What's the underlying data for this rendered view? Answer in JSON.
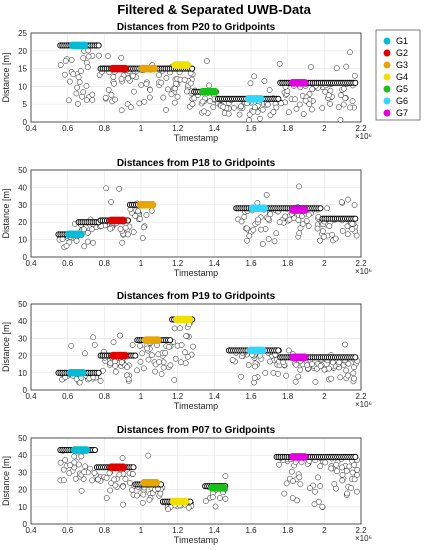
{
  "figure_title": "Filtered & Separated UWB-Data",
  "colors": {
    "G1": "#00bcd4",
    "G2": "#e00000",
    "G3": "#e8a400",
    "G4": "#f0e000",
    "G5": "#18c018",
    "G6": "#30d8ff",
    "G7": "#e000e0"
  },
  "legend": [
    "G1",
    "G2",
    "G3",
    "G4",
    "G5",
    "G6",
    "G7"
  ],
  "chart_data": [
    {
      "type": "scatter",
      "title": "Distances from P20 to Gridpoints",
      "xlabel": "Timestamp",
      "ylabel": "Distance [m]",
      "x_multiplier": "×10⁶",
      "xlim": [
        0.4,
        2.2
      ],
      "ylim": [
        0,
        25
      ],
      "xticks": [
        "0.4",
        "0.6",
        "0.8",
        "1",
        "1.2",
        "1.4",
        "1.6",
        "1.8",
        "2",
        "2.2"
      ],
      "yticks": [
        "0",
        "5",
        "10",
        "15",
        "20",
        "25"
      ],
      "grid": true,
      "steps": [
        {
          "x0": 0.56,
          "x1": 0.78,
          "y": 21.5
        },
        {
          "x0": 0.78,
          "x1": 1.29,
          "y": 15
        },
        {
          "x0": 1.29,
          "x1": 1.42,
          "y": 8.5
        },
        {
          "x0": 1.42,
          "x1": 1.76,
          "y": 6.5
        },
        {
          "x0": 1.76,
          "x1": 2.18,
          "y": 11
        }
      ],
      "scatter_y_range": [
        0,
        23
      ],
      "gridpoints": [
        {
          "name": "G1",
          "x": 0.66,
          "y": 21.5
        },
        {
          "name": "G2",
          "x": 0.88,
          "y": 15
        },
        {
          "name": "G3",
          "x": 1.04,
          "y": 15
        },
        {
          "name": "G4",
          "x": 1.22,
          "y": 16
        },
        {
          "name": "G5",
          "x": 1.37,
          "y": 8.5
        },
        {
          "name": "G6",
          "x": 1.62,
          "y": 6.5
        },
        {
          "name": "G7",
          "x": 1.86,
          "y": 11
        }
      ]
    },
    {
      "type": "scatter",
      "title": "Distances from P18 to Gridpoints",
      "xlabel": "Timestamp",
      "ylabel": "Distance [m]",
      "x_multiplier": "×10⁶",
      "xlim": [
        0.4,
        2.2
      ],
      "ylim": [
        0,
        50
      ],
      "xticks": [
        "0.4",
        "0.6",
        "0.8",
        "1",
        "1.2",
        "1.4",
        "1.6",
        "1.8",
        "2",
        "2.2"
      ],
      "yticks": [
        "0",
        "10",
        "20",
        "30",
        "40",
        "50"
      ],
      "grid": true,
      "steps": [
        {
          "x0": 0.55,
          "x1": 0.66,
          "y": 13
        },
        {
          "x0": 0.66,
          "x1": 0.78,
          "y": 20
        },
        {
          "x0": 0.78,
          "x1": 0.94,
          "y": 21
        },
        {
          "x0": 0.94,
          "x1": 1.06,
          "y": 30
        },
        {
          "x0": 1.52,
          "x1": 1.99,
          "y": 28
        },
        {
          "x0": 1.99,
          "x1": 2.18,
          "y": 22
        }
      ],
      "scatter_y_range": [
        5,
        45
      ],
      "gridpoints": [
        {
          "name": "G1",
          "x": 0.64,
          "y": 13
        },
        {
          "name": "G2",
          "x": 0.87,
          "y": 21
        },
        {
          "name": "G3",
          "x": 1.03,
          "y": 30
        },
        {
          "name": "G6",
          "x": 1.64,
          "y": 28
        },
        {
          "name": "G7",
          "x": 1.86,
          "y": 27
        }
      ]
    },
    {
      "type": "scatter",
      "title": "Distances from P19 to Gridpoints",
      "xlabel": "Timestamp",
      "ylabel": "Distance [m]",
      "x_multiplier": "×10⁶",
      "xlim": [
        0.4,
        2.2
      ],
      "ylim": [
        0,
        50
      ],
      "xticks": [
        "0.4",
        "0.6",
        "0.8",
        "1",
        "1.2",
        "1.4",
        "1.6",
        "1.8",
        "2",
        "2.2"
      ],
      "yticks": [
        "0",
        "10",
        "20",
        "30",
        "40",
        "50"
      ],
      "grid": true,
      "steps": [
        {
          "x0": 0.55,
          "x1": 0.78,
          "y": 10
        },
        {
          "x0": 0.78,
          "x1": 0.98,
          "y": 20
        },
        {
          "x0": 0.98,
          "x1": 1.17,
          "y": 29
        },
        {
          "x0": 1.17,
          "x1": 1.29,
          "y": 41
        },
        {
          "x0": 1.48,
          "x1": 1.76,
          "y": 23
        },
        {
          "x0": 1.76,
          "x1": 2.18,
          "y": 19
        }
      ],
      "scatter_y_range": [
        3,
        35
      ],
      "gridpoints": [
        {
          "name": "G1",
          "x": 0.65,
          "y": 10
        },
        {
          "name": "G2",
          "x": 0.88,
          "y": 20
        },
        {
          "name": "G3",
          "x": 1.06,
          "y": 29
        },
        {
          "name": "G4",
          "x": 1.23,
          "y": 41
        },
        {
          "name": "G6",
          "x": 1.63,
          "y": 23
        },
        {
          "name": "G7",
          "x": 1.86,
          "y": 19
        }
      ]
    },
    {
      "type": "scatter",
      "title": "Distances from P07 to Gridpoints",
      "xlabel": "Timestamp",
      "ylabel": "Distance [m]",
      "x_multiplier": "×10⁶",
      "xlim": [
        0.4,
        2.2
      ],
      "ylim": [
        0,
        50
      ],
      "xticks": [
        "0.4",
        "0.6",
        "0.8",
        "1",
        "1.2",
        "1.4",
        "1.6",
        "1.8",
        "2",
        "2.2"
      ],
      "yticks": [
        "0",
        "10",
        "20",
        "30",
        "40",
        "50"
      ],
      "grid": true,
      "steps": [
        {
          "x0": 0.56,
          "x1": 0.76,
          "y": 43
        },
        {
          "x0": 0.76,
          "x1": 0.97,
          "y": 33
        },
        {
          "x0": 0.97,
          "x1": 1.12,
          "y": 23
        },
        {
          "x0": 1.12,
          "x1": 1.28,
          "y": 13
        },
        {
          "x0": 1.35,
          "x1": 1.47,
          "y": 22
        },
        {
          "x0": 1.74,
          "x1": 2.18,
          "y": 39
        }
      ],
      "scatter_y_range": [
        8,
        46
      ],
      "gridpoints": [
        {
          "name": "G1",
          "x": 0.67,
          "y": 43
        },
        {
          "name": "G2",
          "x": 0.87,
          "y": 33
        },
        {
          "name": "G3",
          "x": 1.05,
          "y": 24
        },
        {
          "name": "G4",
          "x": 1.21,
          "y": 13
        },
        {
          "name": "G5",
          "x": 1.42,
          "y": 21
        },
        {
          "name": "G7",
          "x": 1.86,
          "y": 39
        }
      ]
    }
  ]
}
